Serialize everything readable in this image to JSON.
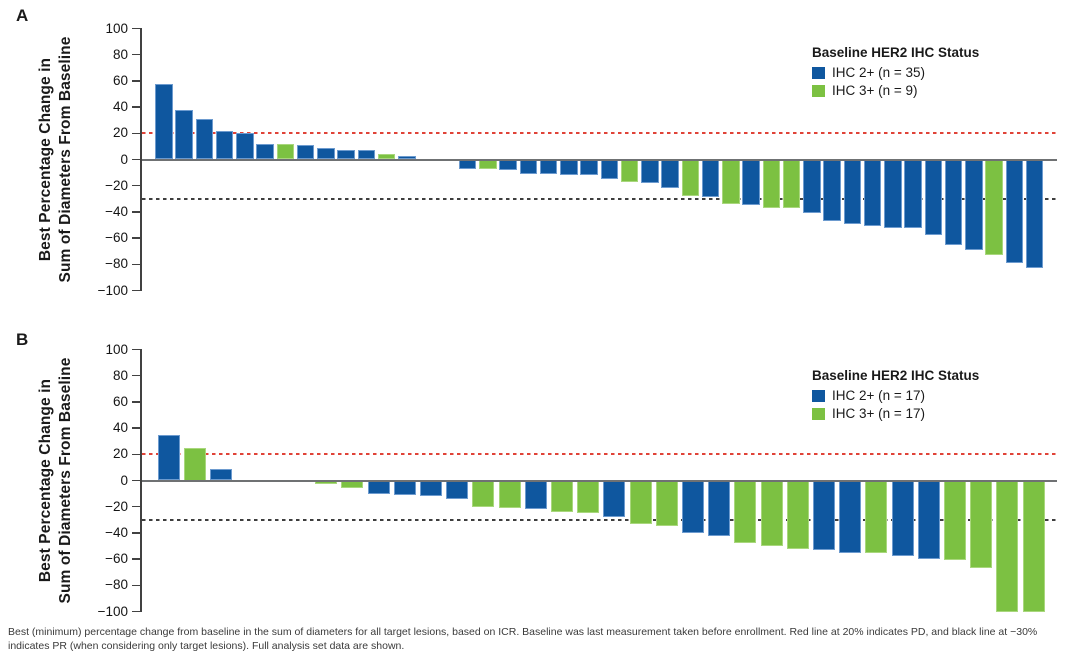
{
  "figure": {
    "panel_a_letter": "A",
    "panel_b_letter": "B"
  },
  "axis": {
    "ylabel_line1": "Best Percentage Change in",
    "ylabel_line2": "Sum of Diameters From Baseline"
  },
  "colors": {
    "blue": "#0f579f",
    "blue_edge": "#6d9bcf",
    "green": "#7cc142",
    "green_edge": "#a9d77d",
    "axis": "#414141",
    "zero_line": "#6f7173",
    "tick_text": "#141414"
  },
  "chart_data": [
    {
      "type": "bar",
      "panel": "A",
      "ylabel": "Best Percentage Change in Sum of Diameters From Baseline",
      "ylim": [
        -100,
        100
      ],
      "yticks": [
        100,
        80,
        60,
        40,
        20,
        0,
        -20,
        -40,
        -60,
        -80,
        -100
      ],
      "grid": false,
      "legend": {
        "title": "Baseline HER2 IHC Status",
        "position": "top-right",
        "entries": [
          {
            "label": "IHC 2+ (n = 35)",
            "color": "#0f579f"
          },
          {
            "label": "IHC 3+ (n = 9)",
            "color": "#7cc142"
          }
        ]
      },
      "ref_lines": [
        {
          "y": 20,
          "style": "dashed",
          "color": "#e04338",
          "meaning": "PD"
        },
        {
          "y": -30,
          "style": "dashed",
          "color": "#3e3e3e",
          "meaning": "PR"
        }
      ],
      "values": [
        58,
        38,
        31,
        22,
        20,
        12,
        12,
        11,
        9,
        7,
        7,
        4,
        3,
        0,
        0,
        -7,
        -7,
        -8,
        -11,
        -11,
        -12,
        -12,
        -15,
        -17,
        -18,
        -22,
        -28,
        -29,
        -34,
        -35,
        -37,
        -37,
        -41,
        -47,
        -49,
        -51,
        -52,
        -52,
        -58,
        -65,
        -69,
        -73,
        -79,
        -83
      ],
      "ihc": [
        "2+",
        "2+",
        "2+",
        "2+",
        "2+",
        "2+",
        "3+",
        "2+",
        "2+",
        "2+",
        "2+",
        "3+",
        "2+",
        "2+",
        "2+",
        "2+",
        "3+",
        "2+",
        "2+",
        "2+",
        "2+",
        "2+",
        "2+",
        "3+",
        "2+",
        "2+",
        "3+",
        "2+",
        "3+",
        "2+",
        "3+",
        "3+",
        "2+",
        "2+",
        "2+",
        "2+",
        "2+",
        "2+",
        "2+",
        "2+",
        "2+",
        "3+",
        "2+",
        "2+"
      ]
    },
    {
      "type": "bar",
      "panel": "B",
      "ylabel": "Best Percentage Change in Sum of Diameters From Baseline",
      "ylim": [
        -100,
        100
      ],
      "yticks": [
        100,
        80,
        60,
        40,
        20,
        0,
        -20,
        -40,
        -60,
        -80,
        -100
      ],
      "grid": false,
      "legend": {
        "title": "Baseline HER2 IHC Status",
        "position": "top-right",
        "entries": [
          {
            "label": "IHC 2+ (n = 17)",
            "color": "#0f579f"
          },
          {
            "label": "IHC 3+ (n = 17)",
            "color": "#7cc142"
          }
        ]
      },
      "ref_lines": [
        {
          "y": 20,
          "style": "dashed",
          "color": "#e04338",
          "meaning": "PD"
        },
        {
          "y": -30,
          "style": "dashed",
          "color": "#3e3e3e",
          "meaning": "PR"
        }
      ],
      "values": [
        35,
        25,
        9,
        0,
        0,
        0,
        -3,
        -6,
        -10,
        -11,
        -12,
        -14,
        -20,
        -21,
        -22,
        -24,
        -25,
        -28,
        -33,
        -35,
        -40,
        -42,
        -48,
        -50,
        -52,
        -53,
        -55,
        -55,
        -58,
        -60,
        -61,
        -67,
        -100,
        -100
      ],
      "ihc": [
        "2+",
        "3+",
        "2+",
        "2+",
        "2+",
        "2+",
        "3+",
        "3+",
        "2+",
        "2+",
        "2+",
        "2+",
        "3+",
        "3+",
        "2+",
        "3+",
        "3+",
        "2+",
        "3+",
        "3+",
        "2+",
        "2+",
        "3+",
        "3+",
        "3+",
        "2+",
        "2+",
        "3+",
        "2+",
        "2+",
        "3+",
        "3+",
        "3+",
        "3+"
      ]
    }
  ],
  "footnote": "Best (minimum) percentage change from baseline in the sum of diameters for all target lesions, based on ICR. Baseline was last measurement taken before enrollment. Red line at 20% indicates PD, and black line at −30% indicates PR (when considering only target lesions). Full analysis set data are shown."
}
